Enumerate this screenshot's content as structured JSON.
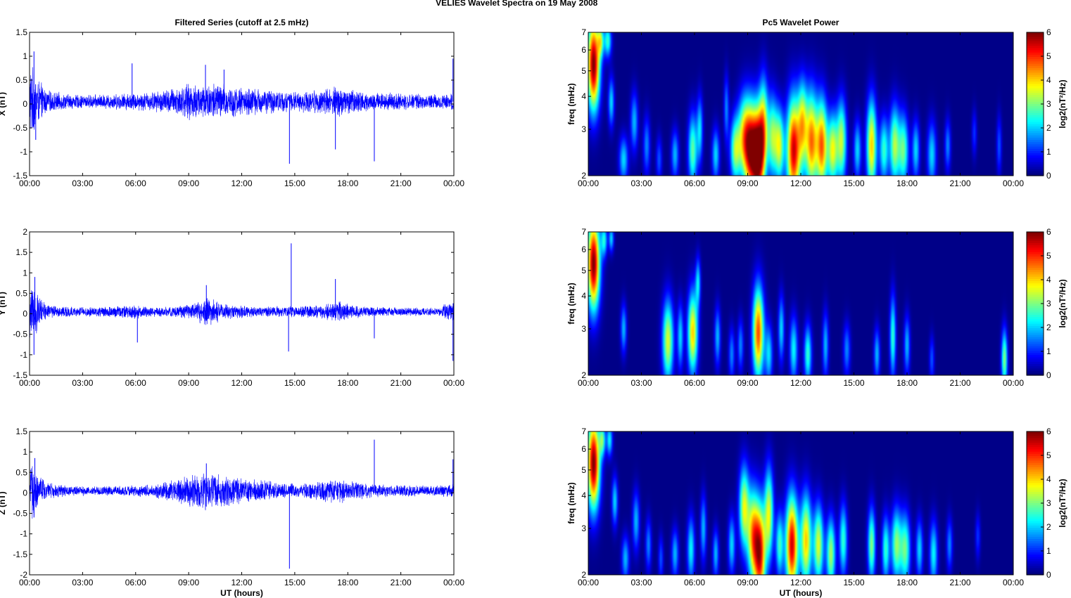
{
  "figure": {
    "title_left": "VELIES Wavelet Spectra on 19 May",
    "title_right": "2008"
  },
  "chart_data": [
    {
      "type": "line",
      "panel": "X",
      "title": "Filtered Series (cutoff at 2.5 mHz)",
      "ylabel": "X (nT)",
      "xlabel": "",
      "xlim": [
        0,
        24
      ],
      "ylim": [
        -1.5,
        1.5
      ],
      "x_ticks": [
        "00:00",
        "03:00",
        "06:00",
        "09:00",
        "12:00",
        "15:00",
        "18:00",
        "21:00",
        "00:00"
      ],
      "y_ticks": [
        "1.5",
        "1",
        "0.5",
        "0",
        "-0.5",
        "-1",
        "-1.5"
      ],
      "series_color": "#0000ff",
      "envelope_x": [
        0,
        0.5,
        1,
        2,
        3,
        4,
        5,
        6,
        7,
        8,
        9,
        10,
        10.5,
        11,
        12,
        13,
        14,
        15,
        16,
        17,
        17.5,
        18,
        19,
        20,
        21,
        22,
        23,
        24
      ],
      "envelope_amplitude": [
        0.9,
        0.5,
        0.25,
        0.18,
        0.15,
        0.16,
        0.18,
        0.2,
        0.22,
        0.3,
        0.4,
        0.42,
        0.45,
        0.4,
        0.32,
        0.3,
        0.25,
        0.22,
        0.25,
        0.32,
        0.35,
        0.3,
        0.22,
        0.2,
        0.18,
        0.17,
        0.16,
        0.2
      ],
      "spikes": [
        {
          "t": 5.8,
          "v": 0.85
        },
        {
          "t": 9.95,
          "v": 0.82
        },
        {
          "t": 11.0,
          "v": 0.72
        },
        {
          "t": 14.7,
          "v": -1.25
        },
        {
          "t": 17.3,
          "v": -0.95
        },
        {
          "t": 19.5,
          "v": -1.2
        },
        {
          "t": 23.95,
          "v": 0.95
        },
        {
          "t": 0.25,
          "v": 1.1
        },
        {
          "t": 0.35,
          "v": -0.75
        }
      ]
    },
    {
      "type": "line",
      "panel": "Y",
      "title": "",
      "ylabel": "Y (nT)",
      "xlabel": "",
      "xlim": [
        0,
        24
      ],
      "ylim": [
        -1.5,
        2
      ],
      "x_ticks": [
        "00:00",
        "03:00",
        "06:00",
        "09:00",
        "12:00",
        "15:00",
        "18:00",
        "21:00",
        "00:00"
      ],
      "y_ticks": [
        "2",
        "1.5",
        "1",
        "0.5",
        "0",
        "-0.5",
        "-1",
        "-1.5"
      ],
      "series_color": "#0000ff",
      "envelope_x": [
        0,
        0.5,
        1,
        2,
        3,
        4,
        5,
        6,
        7,
        8,
        9,
        10,
        10.5,
        11,
        12,
        13,
        14,
        15,
        16,
        17,
        17.5,
        18,
        19,
        20,
        21,
        22,
        23,
        24
      ],
      "envelope_amplitude": [
        0.9,
        0.45,
        0.2,
        0.14,
        0.12,
        0.14,
        0.16,
        0.18,
        0.13,
        0.14,
        0.18,
        0.4,
        0.3,
        0.22,
        0.16,
        0.14,
        0.14,
        0.15,
        0.17,
        0.22,
        0.3,
        0.2,
        0.14,
        0.12,
        0.11,
        0.11,
        0.11,
        0.3
      ],
      "spikes": [
        {
          "t": 14.8,
          "v": 1.72
        },
        {
          "t": 14.65,
          "v": -0.92
        },
        {
          "t": 17.3,
          "v": 0.85
        },
        {
          "t": 19.5,
          "v": -0.6
        },
        {
          "t": 6.1,
          "v": -0.7
        },
        {
          "t": 10.0,
          "v": 0.7
        },
        {
          "t": 0.25,
          "v": -1.0
        },
        {
          "t": 23.95,
          "v": -1.15
        },
        {
          "t": 0.3,
          "v": 0.9
        }
      ]
    },
    {
      "type": "line",
      "panel": "Z",
      "title": "",
      "ylabel": "Z (nT)",
      "xlabel": "UT (hours)",
      "xlim": [
        0,
        24
      ],
      "ylim": [
        -2,
        1.5
      ],
      "x_ticks": [
        "00:00",
        "03:00",
        "06:00",
        "09:00",
        "12:00",
        "15:00",
        "18:00",
        "21:00",
        "00:00"
      ],
      "y_ticks": [
        "1.5",
        "1",
        "0.5",
        "0",
        "-0.5",
        "-1",
        "-1.5",
        "-2"
      ],
      "series_color": "#0000ff",
      "envelope_x": [
        0,
        0.5,
        1,
        2,
        3,
        4,
        5,
        6,
        7,
        8,
        9,
        10,
        10.5,
        11,
        12,
        13,
        14,
        15,
        16,
        17,
        17.5,
        18,
        19,
        20,
        21,
        22,
        23,
        24
      ],
      "envelope_amplitude": [
        0.85,
        0.45,
        0.22,
        0.15,
        0.12,
        0.12,
        0.13,
        0.15,
        0.17,
        0.28,
        0.4,
        0.55,
        0.48,
        0.4,
        0.32,
        0.3,
        0.22,
        0.18,
        0.22,
        0.3,
        0.35,
        0.28,
        0.2,
        0.16,
        0.14,
        0.14,
        0.13,
        0.2
      ],
      "spikes": [
        {
          "t": 14.7,
          "v": -1.85
        },
        {
          "t": 19.5,
          "v": 1.3
        },
        {
          "t": 10.0,
          "v": 0.72
        },
        {
          "t": 23.95,
          "v": 0.82
        },
        {
          "t": 0.25,
          "v": -0.6
        },
        {
          "t": 0.3,
          "v": 0.85
        }
      ]
    },
    {
      "type": "heatmap",
      "panel": "X",
      "title": "Pc5 Wavelet Power",
      "ylabel": "freq (mHz)",
      "xlabel": "",
      "xlim": [
        0,
        24
      ],
      "ylim": [
        2,
        7
      ],
      "y_scale": "log",
      "x_ticks": [
        "00:00",
        "03:00",
        "06:00",
        "09:00",
        "12:00",
        "15:00",
        "18:00",
        "21:00",
        "00:00"
      ],
      "y_ticks": [
        "7",
        "6",
        "5",
        "4",
        "3",
        "2"
      ],
      "clim": [
        0,
        6
      ],
      "colorbar_ticks": [
        "6",
        "5",
        "4",
        "3",
        "2",
        "1",
        "0"
      ],
      "colorbar_label": "log2(nT²/Hz)",
      "blobs": [
        [
          0.3,
          5.3,
          0.25,
          0.28,
          6
        ],
        [
          0.7,
          6.5,
          0.12,
          0.1,
          2.5
        ],
        [
          1.1,
          6.5,
          0.15,
          0.1,
          2.5
        ],
        [
          1.3,
          3.8,
          0.12,
          0.15,
          2
        ],
        [
          2.0,
          2.3,
          0.18,
          0.14,
          2
        ],
        [
          2.6,
          3.2,
          0.15,
          0.18,
          1.8
        ],
        [
          3.3,
          2.6,
          0.14,
          0.18,
          1.5
        ],
        [
          4.0,
          2.3,
          0.12,
          0.14,
          1.2
        ],
        [
          4.9,
          2.4,
          0.15,
          0.15,
          1.8
        ],
        [
          5.9,
          2.5,
          0.18,
          0.22,
          2.8
        ],
        [
          6.3,
          3.0,
          0.12,
          0.2,
          2
        ],
        [
          7.2,
          2.4,
          0.15,
          0.16,
          2
        ],
        [
          7.8,
          3.6,
          0.1,
          0.2,
          1.5
        ],
        [
          8.3,
          2.5,
          0.2,
          0.2,
          3
        ],
        [
          8.8,
          2.8,
          0.25,
          0.25,
          3.5
        ],
        [
          9.2,
          2.5,
          0.25,
          0.28,
          5
        ],
        [
          9.6,
          2.4,
          0.22,
          0.28,
          5.5
        ],
        [
          9.9,
          3.0,
          0.18,
          0.3,
          3.5
        ],
        [
          10.4,
          2.8,
          0.2,
          0.25,
          3
        ],
        [
          10.8,
          2.6,
          0.18,
          0.22,
          3.2
        ],
        [
          11.6,
          2.5,
          0.28,
          0.32,
          5.5
        ],
        [
          12.1,
          3.2,
          0.18,
          0.25,
          3
        ],
        [
          12.6,
          2.7,
          0.25,
          0.3,
          4.5
        ],
        [
          13.2,
          2.6,
          0.22,
          0.28,
          4.5
        ],
        [
          13.8,
          2.5,
          0.2,
          0.22,
          3.5
        ],
        [
          14.3,
          2.7,
          0.2,
          0.25,
          3.3
        ],
        [
          15.2,
          2.5,
          0.15,
          0.18,
          2
        ],
        [
          16.0,
          2.6,
          0.2,
          0.28,
          4
        ],
        [
          16.7,
          2.5,
          0.18,
          0.2,
          2.5
        ],
        [
          17.3,
          2.6,
          0.2,
          0.24,
          3.2
        ],
        [
          17.8,
          2.5,
          0.2,
          0.22,
          2.8
        ],
        [
          18.5,
          2.5,
          0.15,
          0.18,
          2
        ],
        [
          19.4,
          2.4,
          0.18,
          0.2,
          2
        ],
        [
          20.3,
          2.6,
          0.12,
          0.16,
          1.5
        ],
        [
          21.8,
          2.9,
          0.1,
          0.14,
          1
        ],
        [
          23.2,
          2.6,
          0.1,
          0.18,
          1.2
        ]
      ]
    },
    {
      "type": "heatmap",
      "panel": "Y",
      "title": "",
      "ylabel": "freq (mHz)",
      "xlabel": "",
      "xlim": [
        0,
        24
      ],
      "ylim": [
        2,
        7
      ],
      "y_scale": "log",
      "x_ticks": [
        "00:00",
        "03:00",
        "06:00",
        "09:00",
        "12:00",
        "15:00",
        "18:00",
        "21:00",
        "00:00"
      ],
      "y_ticks": [
        "7",
        "6",
        "5",
        "4",
        "3",
        "2"
      ],
      "clim": [
        0,
        6
      ],
      "colorbar_ticks": [
        "6",
        "5",
        "4",
        "3",
        "2",
        "1",
        "0"
      ],
      "colorbar_label": "log2(nT²/Hz)",
      "blobs": [
        [
          0.3,
          5.3,
          0.25,
          0.28,
          6
        ],
        [
          0.9,
          6.5,
          0.12,
          0.1,
          2.2
        ],
        [
          1.3,
          6.6,
          0.1,
          0.08,
          2
        ],
        [
          2.0,
          3.0,
          0.12,
          0.15,
          1.8
        ],
        [
          4.5,
          2.7,
          0.22,
          0.25,
          3.5
        ],
        [
          5.2,
          2.8,
          0.12,
          0.2,
          2
        ],
        [
          5.9,
          2.9,
          0.2,
          0.25,
          4
        ],
        [
          6.2,
          4.5,
          0.1,
          0.15,
          2
        ],
        [
          7.3,
          2.8,
          0.12,
          0.18,
          1.8
        ],
        [
          8.1,
          2.4,
          0.12,
          0.16,
          1.5
        ],
        [
          8.6,
          2.6,
          0.12,
          0.16,
          1.5
        ],
        [
          9.6,
          2.9,
          0.22,
          0.28,
          4.8
        ],
        [
          10.2,
          2.4,
          0.15,
          0.18,
          2
        ],
        [
          10.9,
          3.0,
          0.12,
          0.2,
          2
        ],
        [
          11.6,
          2.5,
          0.16,
          0.2,
          2.2
        ],
        [
          12.4,
          2.4,
          0.15,
          0.18,
          2.5
        ],
        [
          13.4,
          2.6,
          0.12,
          0.2,
          1.8
        ],
        [
          14.6,
          2.5,
          0.14,
          0.16,
          1.5
        ],
        [
          16.3,
          2.4,
          0.12,
          0.16,
          1.8
        ],
        [
          17.2,
          2.8,
          0.12,
          0.25,
          2.5
        ],
        [
          18.0,
          2.6,
          0.12,
          0.18,
          1.8
        ],
        [
          19.4,
          2.3,
          0.1,
          0.14,
          1.2
        ],
        [
          23.5,
          2.3,
          0.12,
          0.18,
          3
        ]
      ]
    },
    {
      "type": "heatmap",
      "panel": "Z",
      "title": "",
      "ylabel": "freq (mHz)",
      "xlabel": "UT (hours)",
      "xlim": [
        0,
        24
      ],
      "ylim": [
        2,
        7
      ],
      "y_scale": "log",
      "x_ticks": [
        "00:00",
        "03:00",
        "06:00",
        "09:00",
        "12:00",
        "15:00",
        "18:00",
        "21:00",
        "00:00"
      ],
      "y_ticks": [
        "7",
        "6",
        "5",
        "4",
        "3",
        "2"
      ],
      "clim": [
        0,
        6
      ],
      "colorbar_ticks": [
        "6",
        "5",
        "4",
        "3",
        "2",
        "1",
        "0"
      ],
      "colorbar_label": "log2(nT²/Hz)",
      "blobs": [
        [
          0.3,
          5.3,
          0.25,
          0.28,
          6
        ],
        [
          0.8,
          6.5,
          0.12,
          0.1,
          2.5
        ],
        [
          1.2,
          6.5,
          0.12,
          0.1,
          2.2
        ],
        [
          1.5,
          3.8,
          0.12,
          0.15,
          2
        ],
        [
          2.1,
          2.3,
          0.15,
          0.14,
          1.8
        ],
        [
          2.7,
          3.2,
          0.14,
          0.18,
          1.8
        ],
        [
          3.4,
          2.6,
          0.12,
          0.16,
          1.5
        ],
        [
          4.1,
          2.3,
          0.1,
          0.14,
          1.2
        ],
        [
          4.9,
          2.4,
          0.14,
          0.15,
          1.8
        ],
        [
          5.8,
          2.5,
          0.15,
          0.2,
          2.2
        ],
        [
          6.5,
          3.0,
          0.12,
          0.2,
          1.8
        ],
        [
          7.2,
          2.4,
          0.12,
          0.15,
          1.8
        ],
        [
          8.1,
          2.6,
          0.14,
          0.18,
          2
        ],
        [
          8.8,
          3.6,
          0.2,
          0.25,
          3.5
        ],
        [
          9.3,
          2.8,
          0.22,
          0.28,
          4
        ],
        [
          9.7,
          2.4,
          0.22,
          0.3,
          5.2
        ],
        [
          10.2,
          3.4,
          0.18,
          0.28,
          3.5
        ],
        [
          10.8,
          2.6,
          0.15,
          0.2,
          2.5
        ],
        [
          11.5,
          2.6,
          0.25,
          0.3,
          5.5
        ],
        [
          12.3,
          2.7,
          0.22,
          0.28,
          4
        ],
        [
          13.0,
          2.6,
          0.2,
          0.24,
          3.5
        ],
        [
          13.7,
          2.4,
          0.18,
          0.22,
          3.2
        ],
        [
          14.4,
          2.7,
          0.16,
          0.22,
          2.5
        ],
        [
          16.0,
          2.6,
          0.15,
          0.22,
          3
        ],
        [
          16.8,
          2.5,
          0.15,
          0.2,
          2.5
        ],
        [
          17.4,
          2.6,
          0.2,
          0.22,
          3
        ],
        [
          17.9,
          2.5,
          0.2,
          0.22,
          2.8
        ],
        [
          18.7,
          2.5,
          0.14,
          0.18,
          2
        ],
        [
          19.5,
          2.4,
          0.16,
          0.2,
          2.2
        ],
        [
          20.4,
          2.6,
          0.12,
          0.16,
          1.5
        ],
        [
          22.0,
          2.8,
          0.1,
          0.14,
          1
        ]
      ]
    }
  ]
}
